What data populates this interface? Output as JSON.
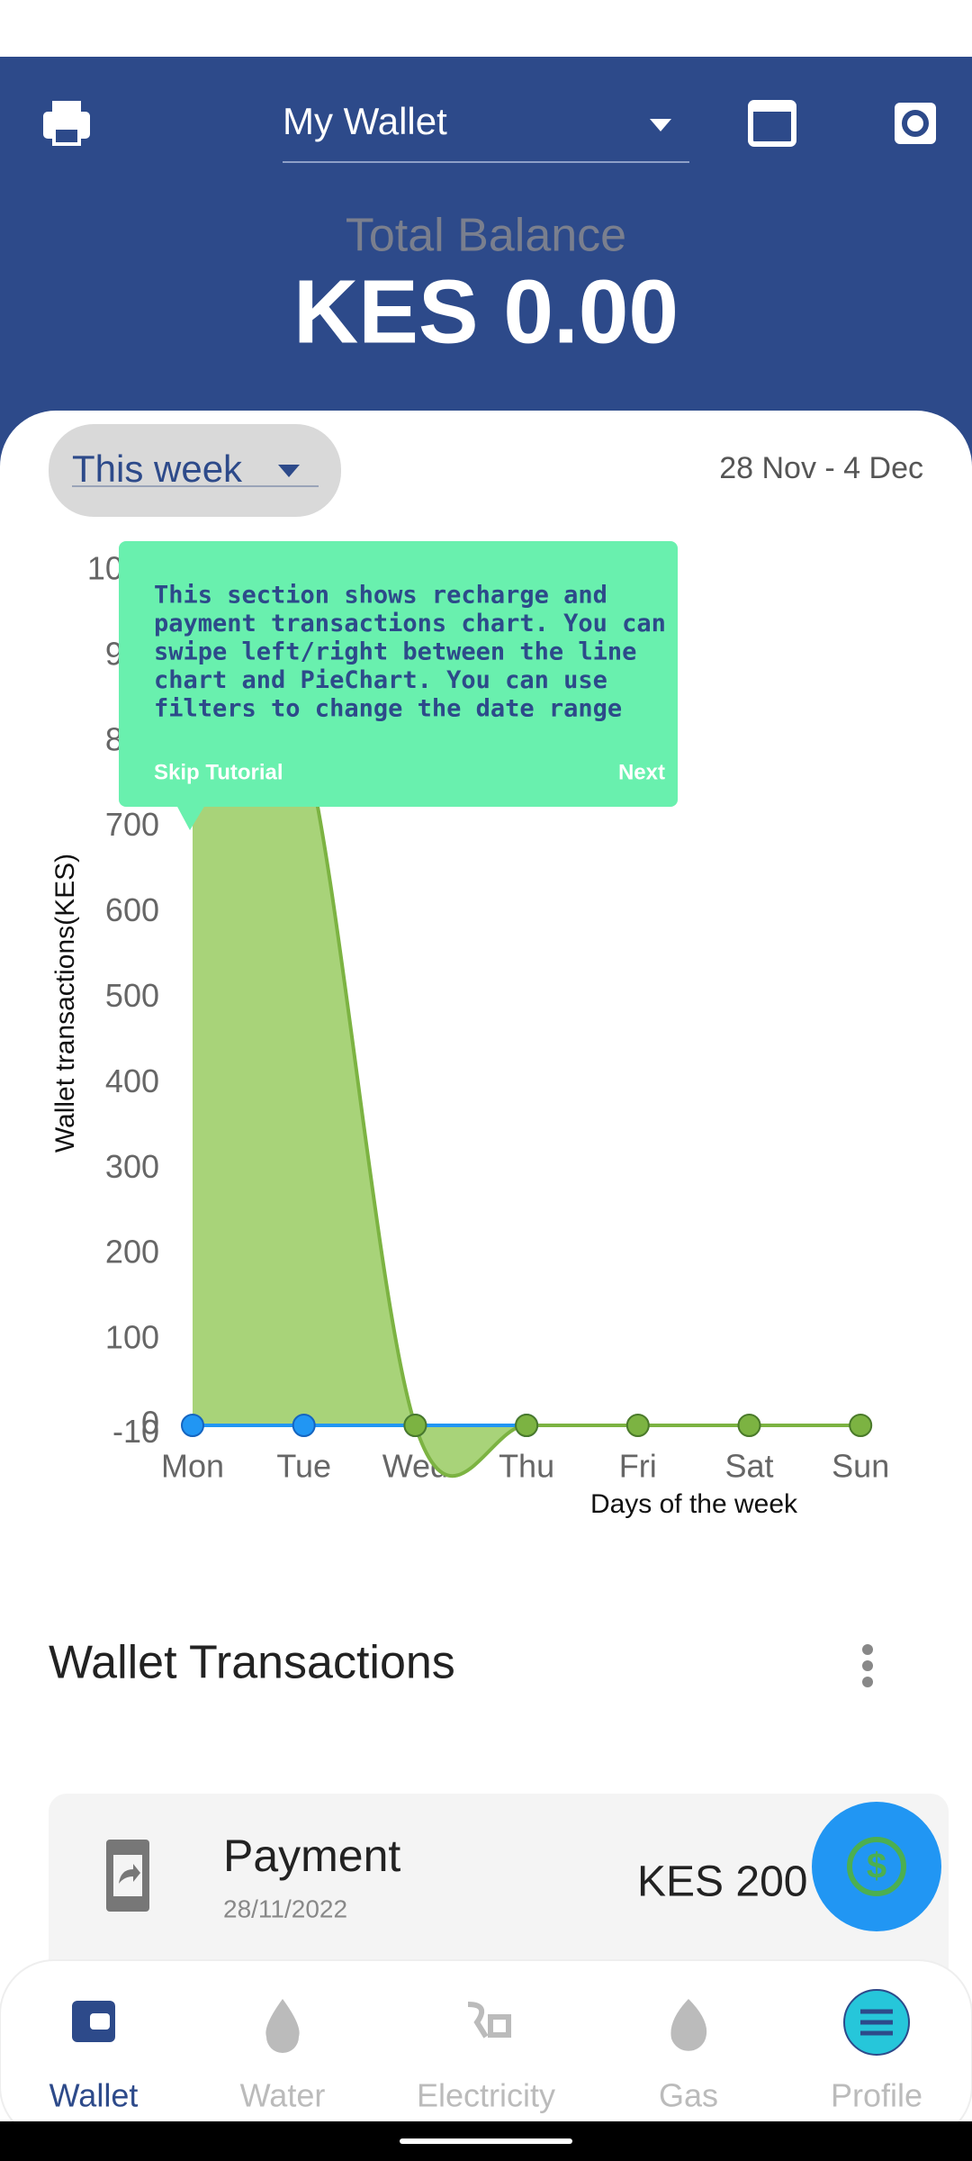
{
  "header": {
    "wallet_selector": "My Wallet",
    "balance_label": "Total Balance",
    "balance": "KES 0.00"
  },
  "filter": {
    "period": "This week",
    "date_range": "28 Nov - 4 Dec"
  },
  "chart_data": {
    "type": "line",
    "x_label": "Days of the week",
    "y_label": "Wallet transactions(KES)",
    "categories": [
      "Mon",
      "Tue",
      "Wed",
      "Thu",
      "Fri",
      "Sat",
      "Sun"
    ],
    "series": [
      {
        "color": "#7cb342",
        "values": [
          1000,
          800,
          0,
          0,
          0,
          0,
          0
        ]
      },
      {
        "color": "#2196f3",
        "values": [
          0,
          0,
          0,
          0,
          null,
          null,
          null
        ]
      }
    ],
    "ylim": [
      -10,
      1000
    ],
    "yticks": [
      -10,
      0,
      100,
      200,
      300,
      400,
      500,
      600,
      700,
      800,
      900,
      1000
    ]
  },
  "tutorial": {
    "lines": [
      "This section shows recharge and",
      "payment transactions chart. You can",
      "swipe left/right between the line",
      "chart and PieChart. You can use",
      "filters to change the date range"
    ],
    "skip": "Skip Tutorial",
    "next": "Next"
  },
  "transactions": {
    "title": "Wallet Transactions",
    "items": [
      {
        "type": "Payment",
        "date": "28/11/2022",
        "amount": "KES 200"
      }
    ]
  },
  "nav": [
    "Wallet",
    "Water",
    "Electricity",
    "Gas",
    "Profile"
  ]
}
